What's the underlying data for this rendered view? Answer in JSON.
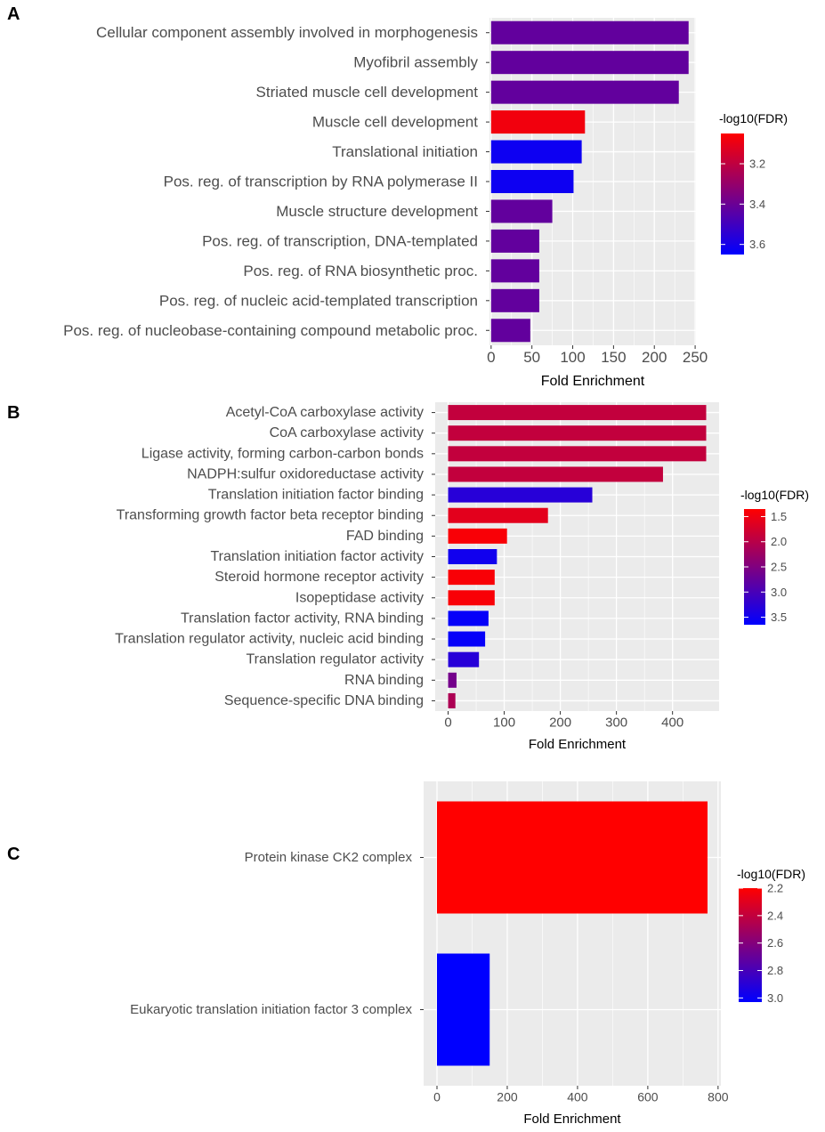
{
  "chart_data": [
    {
      "type": "bar",
      "orientation": "horizontal",
      "panel_label": "A",
      "categories": [
        "Cellular component assembly involved in morphogenesis",
        "Myofibril assembly",
        "Striated muscle cell development",
        "Muscle cell development",
        "Translational initiation",
        "Pos. reg. of transcription by RNA polymerase II",
        "Muscle structure development",
        "Pos. reg. of transcription, DNA-templated",
        "Pos. reg. of RNA biosynthetic proc.",
        "Pos. reg. of nucleic acid-templated transcription",
        "Pos. reg. of nucleobase-containing compound metabolic proc."
      ],
      "values": [
        242,
        242,
        230,
        115,
        111,
        101,
        75,
        59,
        59,
        59,
        48
      ],
      "color_values": [
        3.42,
        3.42,
        3.42,
        3.08,
        3.62,
        3.62,
        3.42,
        3.42,
        3.42,
        3.42,
        3.42
      ],
      "xlabel": "Fold Enrichment",
      "xlim": [
        -2,
        251
      ],
      "xticks": [
        0,
        50,
        100,
        150,
        200,
        250
      ],
      "xtick_labels": [
        "0",
        "50",
        "100",
        "150",
        "200",
        "250"
      ],
      "legend_title": "-log10(FDR)",
      "legend_range": [
        3.05,
        3.65
      ],
      "legend_ticks": [
        3.2,
        3.4,
        3.6
      ],
      "legend_tick_labels": [
        "3.2",
        "3.4",
        "3.6"
      ]
    },
    {
      "type": "bar",
      "orientation": "horizontal",
      "panel_label": "B",
      "categories": [
        "Acetyl-CoA carboxylase activity",
        "CoA carboxylase activity",
        "Ligase activity, forming carbon-carbon bonds",
        "NADPH:sulfur oxidoreductase activity",
        "Translation initiation factor binding",
        "Transforming growth factor beta receptor binding",
        "FAD binding",
        "Translation initiation factor activity",
        "Steroid hormone receptor activity",
        "Isopeptidase activity",
        "Translation factor activity, RNA binding",
        "Translation regulator activity, nucleic acid binding",
        "Translation regulator activity",
        "RNA binding",
        "Sequence-specific DNA binding"
      ],
      "values": [
        460,
        460,
        460,
        383,
        257,
        178,
        105,
        87,
        83,
        83,
        72,
        66,
        55,
        15,
        13
      ],
      "color_values": [
        1.9,
        1.9,
        1.9,
        1.9,
        3.3,
        1.6,
        1.4,
        3.5,
        1.4,
        1.4,
        3.6,
        3.6,
        3.3,
        2.6,
        2.1
      ],
      "xlabel": "Fold Enrichment",
      "xlim": [
        -23,
        483
      ],
      "xticks": [
        0,
        100,
        200,
        300,
        400
      ],
      "xtick_labels": [
        "0",
        "100",
        "200",
        "300",
        "400"
      ],
      "legend_title": "-log10(FDR)",
      "legend_range": [
        1.35,
        3.65
      ],
      "legend_ticks": [
        1.5,
        2.0,
        2.5,
        3.0,
        3.5
      ],
      "legend_tick_labels": [
        "1.5",
        "2.0",
        "2.5",
        "3.0",
        "3.5"
      ]
    },
    {
      "type": "bar",
      "orientation": "horizontal",
      "panel_label": "C",
      "categories": [
        "Protein kinase CK2 complex",
        "Eukaryotic translation initiation factor 3 complex"
      ],
      "values": [
        770,
        150
      ],
      "color_values": [
        2.2,
        3.03
      ],
      "xlabel": "Fold Enrichment",
      "xlim": [
        -38,
        808
      ],
      "xticks": [
        0,
        200,
        400,
        600,
        800
      ],
      "xtick_labels": [
        "0",
        "200",
        "400",
        "600",
        "800"
      ],
      "legend_title": "-log10(FDR)",
      "legend_range": [
        2.2,
        3.03
      ],
      "legend_ticks": [
        2.2,
        2.4,
        2.6,
        2.8,
        3.0
      ],
      "legend_tick_labels": [
        "2.2",
        "2.4",
        "2.6",
        "2.8",
        "3.0"
      ]
    }
  ],
  "colors": {
    "low": "#ff0000",
    "high": "#0000ff",
    "panel_background": "#ebebeb",
    "gridline": "#ffffff"
  }
}
